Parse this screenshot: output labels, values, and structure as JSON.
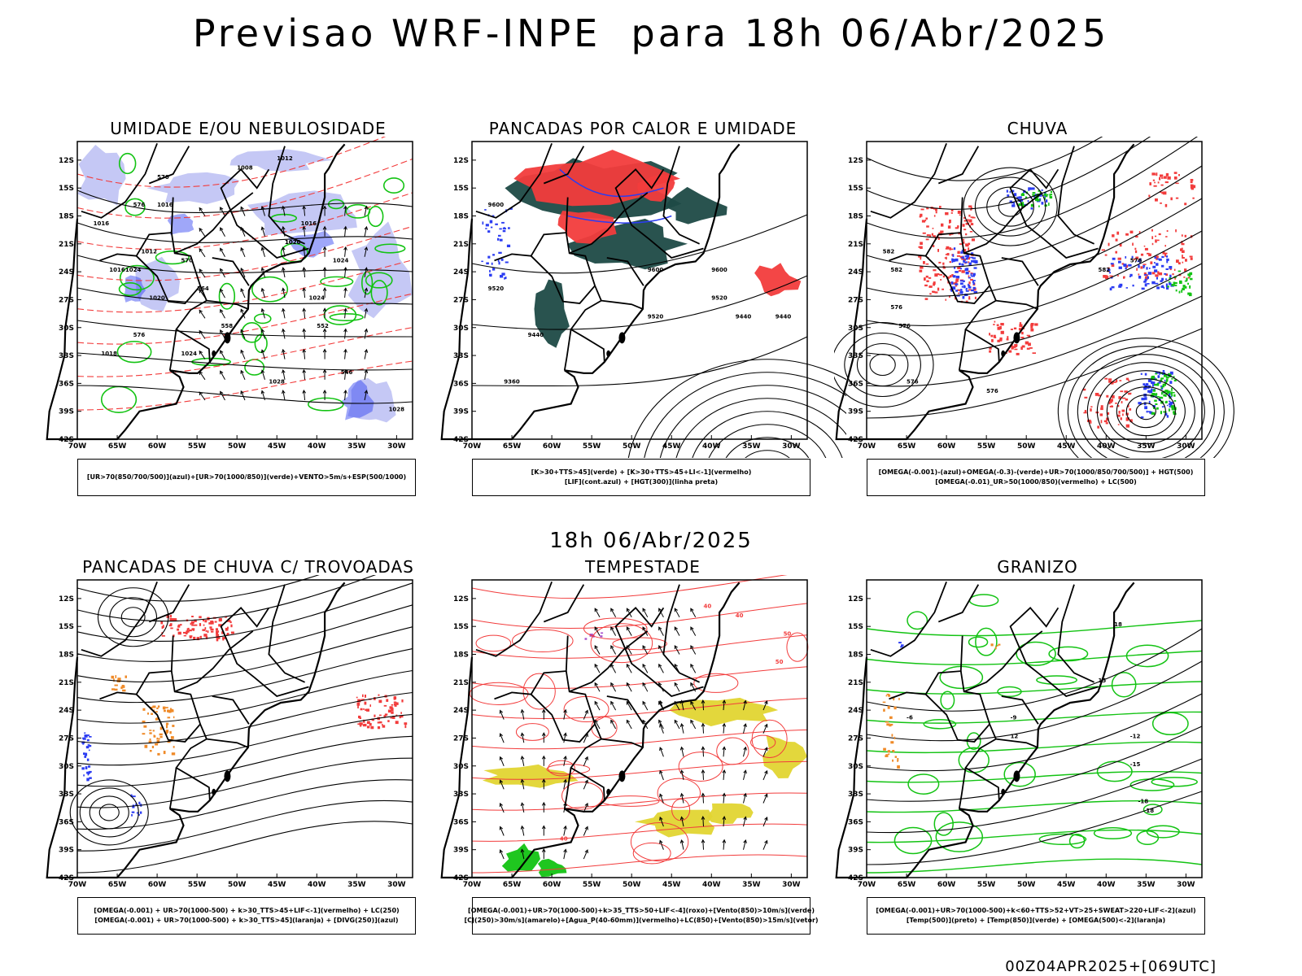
{
  "title": "Previsao WRF-INPE  para 18h 06/Abr/2025",
  "subtitle": "18h 06/Abr/2025",
  "footer": "00Z04APR2025+[069UTC]",
  "axes": {
    "lat_labels": [
      "12S",
      "15S",
      "18S",
      "21S",
      "24S",
      "27S",
      "30S",
      "33S",
      "36S",
      "39S",
      "42S"
    ],
    "lon_labels": [
      "70W",
      "65W",
      "60W",
      "55W",
      "50W",
      "45W",
      "40W",
      "35W",
      "30W"
    ]
  },
  "colors": {
    "blue": "#2b3cf2",
    "green": "#13c313",
    "red": "#f23c3c",
    "dark_green": "#1e4a46",
    "yellow": "#e2d531",
    "orange": "#ef8a28",
    "lavender": "#b2b6f2",
    "purple": "#a54ccc"
  },
  "panels": [
    {
      "title": "UMIDADE E/OU NEBULOSIDADE",
      "legend": [
        "[UR>70(850/700/500)](azul)+[UR>70(1000/850)](verde)+VENTO>5m/s+ESP(500/1000)"
      ],
      "contour_labels": [
        "1008",
        "1012",
        "1016",
        "1020",
        "1024",
        "1028",
        "1016",
        "1012",
        "1016",
        "1020",
        "1024",
        "1024",
        "1028",
        "1020",
        "1024",
        "1018",
        "1016",
        "576",
        "570",
        "564",
        "558",
        "552",
        "546",
        "576",
        "570"
      ]
    },
    {
      "title": "PANCADAS POR CALOR E UMIDADE",
      "legend": [
        "[K>30+TTS>45](verde) + [K>30+TTS>45+LI<-1](vermelho)",
        "[LIF](cont.azul) + [HGT(300)](linha preta)"
      ],
      "contour_labels": [
        "9600",
        "9520",
        "9600",
        "9520",
        "9440",
        "9600",
        "9520",
        "9440",
        "9360",
        "9440"
      ]
    },
    {
      "title": "CHUVA",
      "legend": [
        "[OMEGA(-0.001)-(azul)+OMEGA(-0.3)-(verde)+UR>70(1000/850/700/500)] + HGT(500)",
        "[OMEGA(-0.01)_UR>50(1000/850)(vermelho) + LC(500)"
      ],
      "contour_labels": [
        "582",
        "582",
        "576",
        "576",
        "576",
        "576",
        "576",
        "582"
      ]
    },
    {
      "title": "PANCADAS DE CHUVA C/ TROVOADAS",
      "legend": [
        "[OMEGA(-0.001) + UR>70(1000-500) + k>30_TTS>45+LIF<-1](vermelho) + LC(250)",
        "[OMEGA(-0.001) + UR>70(1000-500) + k>30_TTS>45](laranja) + [DIVG(250)](azul)"
      ],
      "contour_labels": []
    },
    {
      "title": "TEMPESTADE",
      "legend": [
        "[OMEGA(-0.001)+UR>70(1000-500)+k>35_TTS>50+LIF<-4](roxo)+[Vento(850)>10m/s](verde)",
        "[CJ(250)>30m/s](amarelo)+[Agua_P(40-60mm)](vermelho)+LC(850)+[Vento(850)>15m/s](vetor)"
      ],
      "contour_labels": [
        "40",
        "40",
        "50",
        "50",
        "40"
      ]
    },
    {
      "title": "GRANIZO",
      "legend": [
        "[OMEGA(-0.001)+UR>70(1000-500)+k<60+TTS>52+VT>25+SWEAT>220+LIF<-2](azul)",
        "[Temp(500)](preto) + [Temp(850)](verde) + [OMEGA(500)<-2](laranja)"
      ],
      "contour_labels": [
        "-9",
        "-6",
        "-12",
        "-15",
        "-18",
        "18",
        "15",
        "12",
        "18"
      ]
    }
  ]
}
